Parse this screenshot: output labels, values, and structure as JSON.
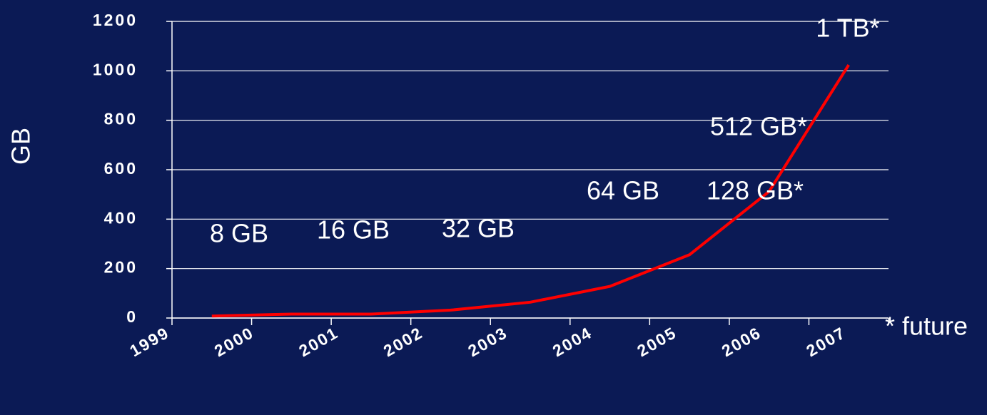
{
  "chart_data": {
    "type": "line",
    "categories": [
      "1999",
      "2000",
      "2001",
      "2002",
      "2003",
      "2004",
      "2005",
      "2006",
      "2007"
    ],
    "series": [
      {
        "color": "#ff0000",
        "values": [
          8,
          16,
          16,
          32,
          64,
          128,
          256,
          512,
          1024
        ]
      }
    ],
    "ylabel": "GB",
    "ylim": [
      0,
      1200
    ],
    "yticks": [
      0,
      200,
      400,
      600,
      800,
      1000,
      1200
    ],
    "grid": true,
    "annotations": [
      "8 GB",
      "16 GB",
      "32 GB",
      "64 GB",
      "128 GB*",
      "512 GB*",
      "1 TB*",
      "* future"
    ]
  }
}
